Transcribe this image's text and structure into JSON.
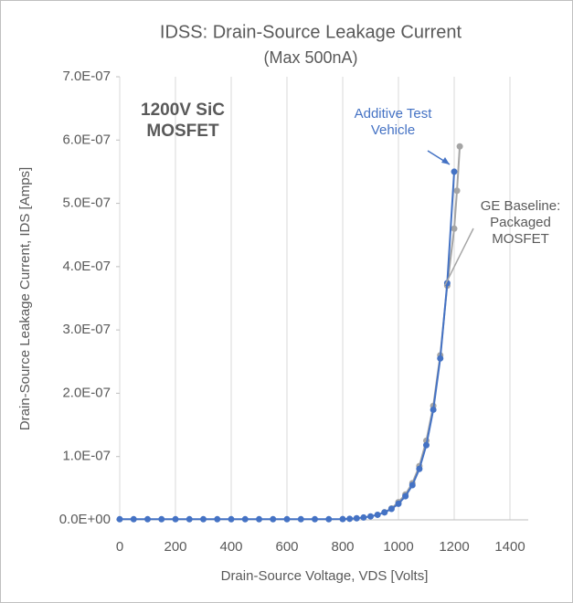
{
  "chart_data": {
    "type": "scatter",
    "title": "IDSS:  Drain-Source Leakage Current",
    "subtitle": "(Max 500nA)",
    "x_label": "Drain-Source Voltage, VDS [Volts]",
    "y_label": "Drain-Source Leakage Current, IDS [Amps]",
    "annotation": "1200V SiC MOSFET",
    "xlim": [
      0,
      1400
    ],
    "xticks": [
      0,
      200,
      400,
      600,
      800,
      1000,
      1200,
      1400
    ],
    "ylim": [
      0,
      7e-07
    ],
    "yticks": [
      {
        "value": 0,
        "label": "0.0E+00"
      },
      {
        "value": 1e-07,
        "label": "1.0E-07"
      },
      {
        "value": 2e-07,
        "label": "2.0E-07"
      },
      {
        "value": 3e-07,
        "label": "3.0E-07"
      },
      {
        "value": 4e-07,
        "label": "4.0E-07"
      },
      {
        "value": 5e-07,
        "label": "5.0E-07"
      },
      {
        "value": 6e-07,
        "label": "6.0E-07"
      },
      {
        "value": 7e-07,
        "label": "7.0E-07"
      }
    ],
    "grid": "x",
    "series": [
      {
        "name": "GE Baseline: Packaged MOSFET",
        "color": "#a5a5a5",
        "x": [
          950,
          975,
          1000,
          1025,
          1050,
          1075,
          1100,
          1125,
          1150,
          1175,
          1200,
          1210,
          1220
        ],
        "values": [
          1.2e-08,
          1.8e-08,
          2.8e-08,
          4e-08,
          5.8e-08,
          8.5e-08,
          1.25e-07,
          1.8e-07,
          2.6e-07,
          3.7e-07,
          4.6e-07,
          5.2e-07,
          5.9e-07
        ]
      },
      {
        "name": "Additive Test Vehicle",
        "color": "#4472c4",
        "x": [
          0,
          50,
          100,
          150,
          200,
          250,
          300,
          350,
          400,
          450,
          500,
          550,
          600,
          650,
          700,
          750,
          800,
          825,
          850,
          875,
          900,
          925,
          950,
          975,
          1000,
          1025,
          1050,
          1075,
          1100,
          1125,
          1150,
          1175,
          1200
        ],
        "values": [
          1e-09,
          1e-09,
          1e-09,
          1e-09,
          1e-09,
          1e-09,
          1e-09,
          1e-09,
          1e-09,
          1e-09,
          1e-09,
          1e-09,
          1e-09,
          1e-09,
          1e-09,
          1e-09,
          1.2e-09,
          1.7e-09,
          2.5e-09,
          3.7e-09,
          5.5e-09,
          8e-09,
          1.18e-08,
          1.73e-08,
          2.54e-08,
          3.73e-08,
          5.48e-08,
          8.05e-08,
          1.18e-07,
          1.74e-07,
          2.55e-07,
          3.74e-07,
          5.5e-07
        ]
      }
    ]
  }
}
